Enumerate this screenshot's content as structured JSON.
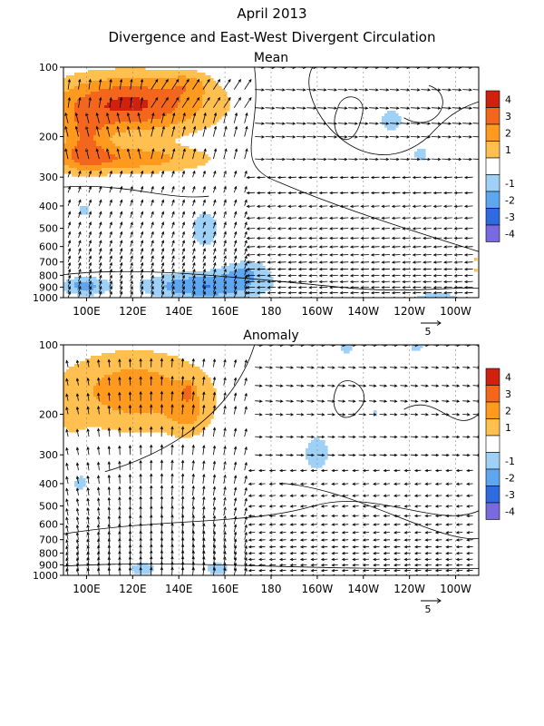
{
  "title": "April 2013",
  "subtitle": "Divergence and East-West Divergent Circulation",
  "colors": {
    "pos": [
      "#ffffff",
      "#ffc04f",
      "#ff9a1e",
      "#f4661b",
      "#d1200e"
    ],
    "neg": [
      "#ffffff",
      "#9fd1f7",
      "#5fa6f0",
      "#2e6ae0",
      "#7a6ae0"
    ]
  },
  "chart_data": [
    {
      "type": "heatmap",
      "title": "Mean",
      "x_ticks": [
        "100E",
        "120E",
        "140E",
        "160E",
        "180",
        "160W",
        "140W",
        "120W",
        "100W"
      ],
      "x_tick_lon": [
        100,
        120,
        140,
        160,
        180,
        200,
        220,
        240,
        260
      ],
      "xlim": [
        90,
        270
      ],
      "y_ticks": [
        "100",
        "200",
        "300",
        "400",
        "500",
        "600",
        "700",
        "800",
        "900",
        "1000"
      ],
      "y_tick_p": [
        100,
        200,
        300,
        400,
        500,
        600,
        700,
        800,
        900,
        1000
      ],
      "ylim": [
        1000,
        100
      ],
      "y_scale": "log",
      "legend_levels": [
        "4",
        "3",
        "2",
        "1",
        "-1",
        "-2",
        "-3",
        "-4"
      ],
      "vector_ref_label": "5"
    },
    {
      "type": "heatmap",
      "title": "Anomaly",
      "x_ticks": [
        "100E",
        "120E",
        "140E",
        "160E",
        "180",
        "160W",
        "140W",
        "120W",
        "100W"
      ],
      "x_tick_lon": [
        100,
        120,
        140,
        160,
        180,
        200,
        220,
        240,
        260
      ],
      "xlim": [
        90,
        270
      ],
      "y_ticks": [
        "100",
        "200",
        "300",
        "400",
        "500",
        "600",
        "700",
        "800",
        "900",
        "1000"
      ],
      "y_tick_p": [
        100,
        200,
        300,
        400,
        500,
        600,
        700,
        800,
        900,
        1000
      ],
      "ylim": [
        1000,
        100
      ],
      "y_scale": "log",
      "legend_levels": [
        "4",
        "3",
        "2",
        "1",
        "-1",
        "-2",
        "-3",
        "-4"
      ],
      "vector_ref_label": "5"
    }
  ]
}
